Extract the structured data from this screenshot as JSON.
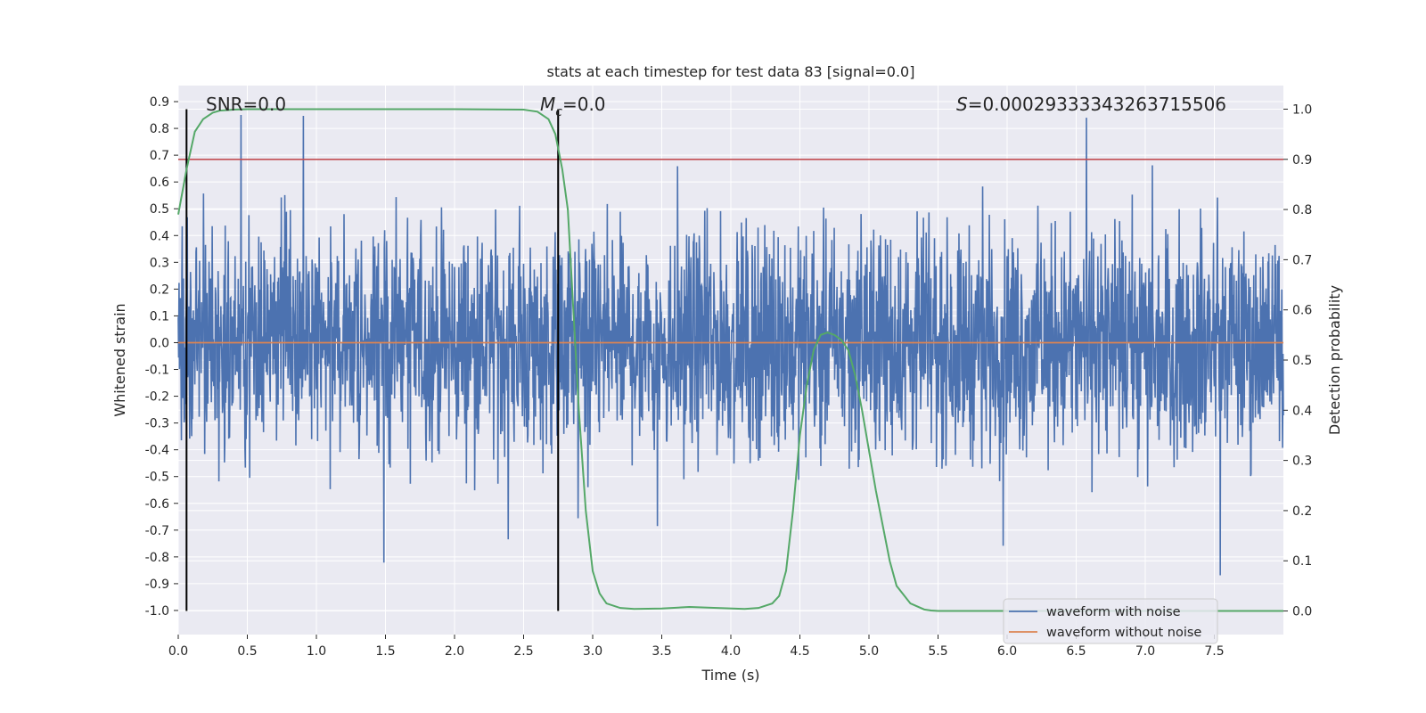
{
  "chart_data": {
    "type": "line",
    "title": "stats at each timestep for test data 83 [signal=0.0]",
    "xlabel": "Time (s)",
    "ylabel_left": "Whitened strain",
    "ylabel_right": "Detection probability",
    "xlim": [
      0,
      8
    ],
    "ylim_left": [
      -1.09,
      0.96
    ],
    "ylim_right": [
      -0.047,
      1.047
    ],
    "x_ticks": [
      "0.0",
      "0.5",
      "1.0",
      "1.5",
      "2.0",
      "2.5",
      "3.0",
      "3.5",
      "4.0",
      "4.5",
      "5.0",
      "5.5",
      "6.0",
      "6.5",
      "7.0",
      "7.5"
    ],
    "y_ticks_left": [
      "-1.0",
      "-0.9",
      "-0.8",
      "-0.7",
      "-0.6",
      "-0.5",
      "-0.4",
      "-0.3",
      "-0.2",
      "-0.1",
      "0.0",
      "0.1",
      "0.2",
      "0.3",
      "0.4",
      "0.5",
      "0.6",
      "0.7",
      "0.8",
      "0.9"
    ],
    "y_ticks_right": [
      "0.0",
      "0.1",
      "0.2",
      "0.3",
      "0.4",
      "0.5",
      "0.6",
      "0.7",
      "0.8",
      "0.9",
      "1.0"
    ],
    "grid": true,
    "legend_placement": "lower-right",
    "annotations": {
      "snr": "SNR=0.0",
      "mc_symbol": "M",
      "mc_sub": "c",
      "mc_value": "=0.0",
      "s_symbol": "S",
      "s_value": "=0.00029333343263715506"
    },
    "series": [
      {
        "name": "waveform with noise",
        "color": "#4c72b0",
        "axis": "left",
        "summary": {
          "typical_amplitude": 0.3,
          "max": 0.85,
          "min": -1.0
        }
      },
      {
        "name": "waveform without noise",
        "color": "#dd8452",
        "axis": "left",
        "x": [
          0,
          8
        ],
        "y": [
          0.0,
          0.0
        ]
      },
      {
        "name": "",
        "color": "#55a868",
        "axis": "right",
        "x": [
          0.0,
          0.06,
          0.12,
          0.18,
          0.25,
          0.3,
          0.4,
          0.5,
          1.0,
          1.5,
          2.0,
          2.5,
          2.6,
          2.68,
          2.73,
          2.78,
          2.82,
          2.86,
          2.9,
          2.95,
          3.0,
          3.05,
          3.1,
          3.2,
          3.3,
          3.5,
          3.7,
          3.9,
          4.1,
          4.2,
          4.3,
          4.35,
          4.4,
          4.45,
          4.5,
          4.55,
          4.6,
          4.65,
          4.7,
          4.75,
          4.8,
          4.85,
          4.9,
          4.95,
          5.0,
          5.05,
          5.1,
          5.15,
          5.2,
          5.3,
          5.4,
          5.45,
          5.5,
          5.6,
          5.8,
          6.0,
          7.0,
          8.0
        ],
        "y": [
          0.79,
          0.88,
          0.955,
          0.98,
          0.993,
          0.997,
          0.999,
          1.0,
          1.0,
          1.0,
          1.0,
          0.999,
          0.995,
          0.98,
          0.95,
          0.88,
          0.8,
          0.6,
          0.4,
          0.2,
          0.08,
          0.035,
          0.015,
          0.006,
          0.004,
          0.005,
          0.008,
          0.006,
          0.004,
          0.006,
          0.015,
          0.03,
          0.08,
          0.2,
          0.35,
          0.45,
          0.52,
          0.55,
          0.555,
          0.55,
          0.54,
          0.52,
          0.47,
          0.4,
          0.32,
          0.24,
          0.17,
          0.1,
          0.05,
          0.015,
          0.003,
          0.001,
          0.0,
          0.0,
          0.0,
          0.0,
          0.0,
          0.0
        ]
      }
    ],
    "threshold_line": {
      "color": "#c44e52",
      "y_right": 0.9
    },
    "vertical_markers": {
      "color": "#000000",
      "x": [
        0.06,
        2.75
      ]
    }
  }
}
